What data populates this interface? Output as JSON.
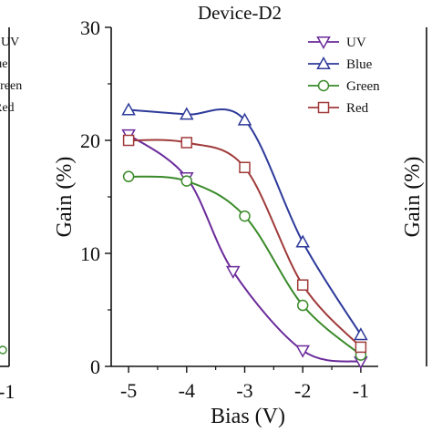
{
  "left_fragment": {
    "legend_texts": [
      "UV",
      "Blue",
      "Green",
      "Red"
    ],
    "x_tick": "-1"
  },
  "right_fragment": {
    "ylabel": "Gain (%)"
  },
  "chart_data": {
    "type": "line",
    "title": "Device-D2",
    "xlabel": "Bias (V)",
    "ylabel": "Gain (%)",
    "xlim": [
      -5.3,
      -0.7
    ],
    "ylim": [
      0,
      30
    ],
    "x_ticks": [
      -5,
      -4,
      -3,
      -2,
      -1
    ],
    "y_ticks": [
      0,
      10,
      20,
      30
    ],
    "x_tick_labels": [
      "-5",
      "-4",
      "-3",
      "-2",
      "-1"
    ],
    "y_tick_labels": [
      "0",
      "10",
      "20",
      "30"
    ],
    "legend_position": "top-right",
    "series": [
      {
        "name": "UV",
        "marker": "triangle-down",
        "color": "#6a2a9a",
        "x": [
          -5,
          -4,
          -3.2,
          -2,
          -1
        ],
        "y": [
          20.5,
          16.7,
          8.4,
          1.4,
          0.4
        ]
      },
      {
        "name": "Blue",
        "marker": "triangle-up",
        "color": "#2e3a9a",
        "x": [
          -5,
          -4,
          -3,
          -2,
          -1
        ],
        "y": [
          22.7,
          22.3,
          21.8,
          11.0,
          2.8
        ]
      },
      {
        "name": "Green",
        "marker": "circle",
        "color": "#3a8a2a",
        "x": [
          -5,
          -4,
          -3,
          -2,
          -1
        ],
        "y": [
          16.8,
          16.4,
          13.3,
          5.4,
          1.0
        ]
      },
      {
        "name": "Red",
        "marker": "square",
        "color": "#a03a3a",
        "x": [
          -5,
          -4,
          -3,
          -2,
          -1
        ],
        "y": [
          20.0,
          19.8,
          17.6,
          7.2,
          1.7
        ]
      }
    ]
  }
}
